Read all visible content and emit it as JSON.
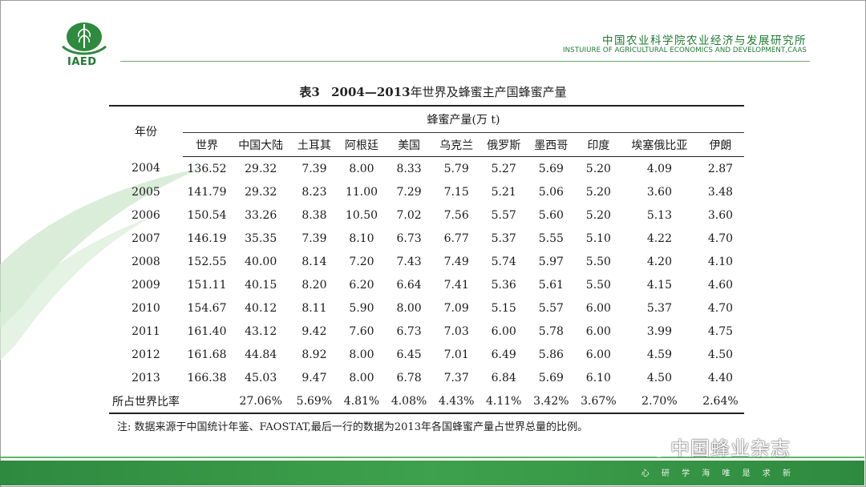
{
  "header": {
    "logo_text": "IAED",
    "institute_cn": "中国农业科学院农业经济与发展研究所",
    "institute_en": "INSTUIURE OF AGRICULTURAL ECONOMICS AND DEVELOPMENT,CAAS"
  },
  "table": {
    "title_prefix": "表3",
    "title_years": "2004—2013",
    "title_rest": "年世界及蜂蜜主产国蜂蜜产量",
    "year_header": "年份",
    "unit_header": "蜂蜜产量(万 t)",
    "columns": [
      "世界",
      "中国大陆",
      "土耳其",
      "阿根廷",
      "美国",
      "乌克兰",
      "俄罗斯",
      "墨西哥",
      "印度",
      "埃塞俄比亚",
      "伊朗"
    ],
    "rows": [
      {
        "year": "2004",
        "values": [
          "136.52",
          "29.32",
          "7.39",
          "8.00",
          "8.33",
          "5.79",
          "5.27",
          "5.69",
          "5.20",
          "4.09",
          "2.87"
        ]
      },
      {
        "year": "2005",
        "values": [
          "141.79",
          "29.32",
          "8.23",
          "11.00",
          "7.29",
          "7.15",
          "5.21",
          "5.06",
          "5.20",
          "3.60",
          "3.48"
        ]
      },
      {
        "year": "2006",
        "values": [
          "150.54",
          "33.26",
          "8.38",
          "10.50",
          "7.02",
          "7.56",
          "5.57",
          "5.60",
          "5.20",
          "5.13",
          "3.60"
        ]
      },
      {
        "year": "2007",
        "values": [
          "146.19",
          "35.35",
          "7.39",
          "8.10",
          "6.73",
          "6.77",
          "5.37",
          "5.55",
          "5.10",
          "4.22",
          "4.70"
        ]
      },
      {
        "year": "2008",
        "values": [
          "152.55",
          "40.00",
          "8.14",
          "7.20",
          "7.43",
          "7.49",
          "5.74",
          "5.97",
          "5.50",
          "4.20",
          "4.10"
        ]
      },
      {
        "year": "2009",
        "values": [
          "151.11",
          "40.15",
          "8.20",
          "6.20",
          "6.64",
          "7.41",
          "5.36",
          "5.61",
          "5.50",
          "4.15",
          "4.60"
        ]
      },
      {
        "year": "2010",
        "values": [
          "154.67",
          "40.12",
          "8.11",
          "5.90",
          "8.00",
          "7.09",
          "5.15",
          "5.57",
          "6.00",
          "5.37",
          "4.70"
        ]
      },
      {
        "year": "2011",
        "values": [
          "161.40",
          "43.12",
          "9.42",
          "7.60",
          "6.73",
          "7.03",
          "6.00",
          "5.78",
          "6.00",
          "3.99",
          "4.75"
        ]
      },
      {
        "year": "2012",
        "values": [
          "161.68",
          "44.84",
          "8.92",
          "8.00",
          "6.45",
          "7.01",
          "6.49",
          "5.86",
          "6.00",
          "4.59",
          "4.50"
        ]
      },
      {
        "year": "2013",
        "values": [
          "166.38",
          "45.03",
          "9.47",
          "8.00",
          "6.78",
          "7.37",
          "6.84",
          "5.69",
          "6.10",
          "4.50",
          "4.40"
        ]
      }
    ],
    "share_label": "所占世界比率",
    "share_values": [
      "",
      "27.06%",
      "5.69%",
      "4.81%",
      "4.08%",
      "4.43%",
      "4.11%",
      "3.42%",
      "3.67%",
      "2.70%",
      "2.64%"
    ],
    "note": "注: 数据来源于中国统计年鉴、FAOSTAT,最后一行的数据为2013年各国蜂蜜产量占世界总量的比例。"
  },
  "footer": {
    "slogan": "心 研 学 海   唯 是 求 新",
    "watermark": "中国蜂业杂志"
  },
  "colors": {
    "brand_green": "#1f7a32",
    "footer_green": "#3ea14c"
  }
}
